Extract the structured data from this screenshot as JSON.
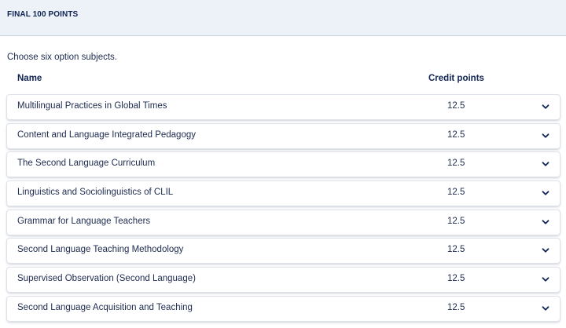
{
  "section": {
    "title": "FINAL 100 POINTS"
  },
  "instruction": "Choose six option subjects.",
  "table": {
    "headers": {
      "name": "Name",
      "credit": "Credit points"
    },
    "rows": [
      {
        "name": "Multilingual Practices in Global Times",
        "credit": "12.5"
      },
      {
        "name": "Content and Language Integrated Pedagogy",
        "credit": "12.5"
      },
      {
        "name": "The Second Language Curriculum",
        "credit": "12.5"
      },
      {
        "name": "Linguistics and Sociolinguistics of CLIL",
        "credit": "12.5"
      },
      {
        "name": "Grammar for Language Teachers",
        "credit": "12.5"
      },
      {
        "name": "Second Language Teaching Methodology",
        "credit": "12.5"
      },
      {
        "name": "Supervised Observation (Second Language)",
        "credit": "12.5"
      },
      {
        "name": "Second Language Acquisition and Teaching",
        "credit": "12.5"
      }
    ]
  },
  "icons": {
    "expand": "chevron-down-icon"
  },
  "colors": {
    "header_bg": "#edf1f8",
    "text": "#1d2b4f",
    "heading": "#0f2452"
  }
}
